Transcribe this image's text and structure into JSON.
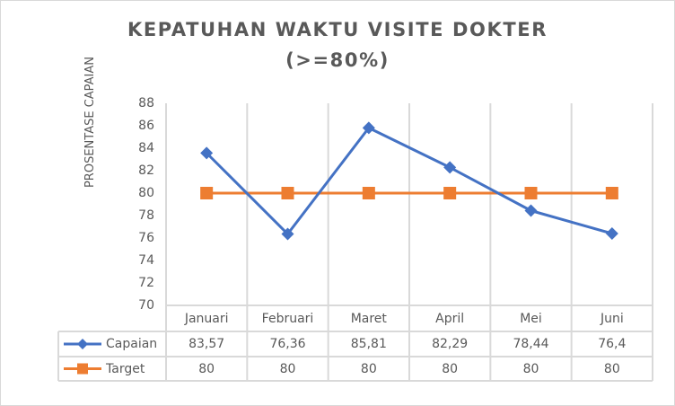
{
  "chart": {
    "title_line1": "KEPATUHAN WAKTU VISITE DOKTER",
    "title_line2": "(>=80%)",
    "ylabel": "PROSENTASE CAPAIAN",
    "yticks": [
      "88",
      "86",
      "84",
      "82",
      "80",
      "78",
      "76",
      "74",
      "72",
      "70"
    ],
    "categories": [
      "Januari",
      "Februari",
      "Maret",
      "April",
      "Mei",
      "Juni"
    ],
    "table": {
      "rows": [
        {
          "name": "Capaian",
          "color": "#4472c4",
          "marker": "diamond",
          "cells": [
            "83,57",
            "76,36",
            "85,81",
            "82,29",
            "78,44",
            "76,4"
          ]
        },
        {
          "name": "Target",
          "color": "#ed7d31",
          "marker": "square",
          "cells": [
            "80",
            "80",
            "80",
            "80",
            "80",
            "80"
          ]
        }
      ]
    }
  },
  "chart_data": {
    "type": "line",
    "title": "KEPATUHAN WAKTU VISITE DOKTER (>=80%)",
    "xlabel": "",
    "ylabel": "PROSENTASE CAPAIAN",
    "categories": [
      "Januari",
      "Februari",
      "Maret",
      "April",
      "Mei",
      "Juni"
    ],
    "series": [
      {
        "name": "Capaian",
        "color": "#4472c4",
        "marker": "diamond",
        "values": [
          83.57,
          76.36,
          85.81,
          82.29,
          78.44,
          76.4
        ]
      },
      {
        "name": "Target",
        "color": "#ed7d31",
        "marker": "square",
        "values": [
          80,
          80,
          80,
          80,
          80,
          80
        ]
      }
    ],
    "ylim": [
      70,
      88
    ],
    "ytick_step": 2,
    "grid": {
      "vertical": true,
      "horizontal": false
    },
    "legend": "data table below plot"
  }
}
